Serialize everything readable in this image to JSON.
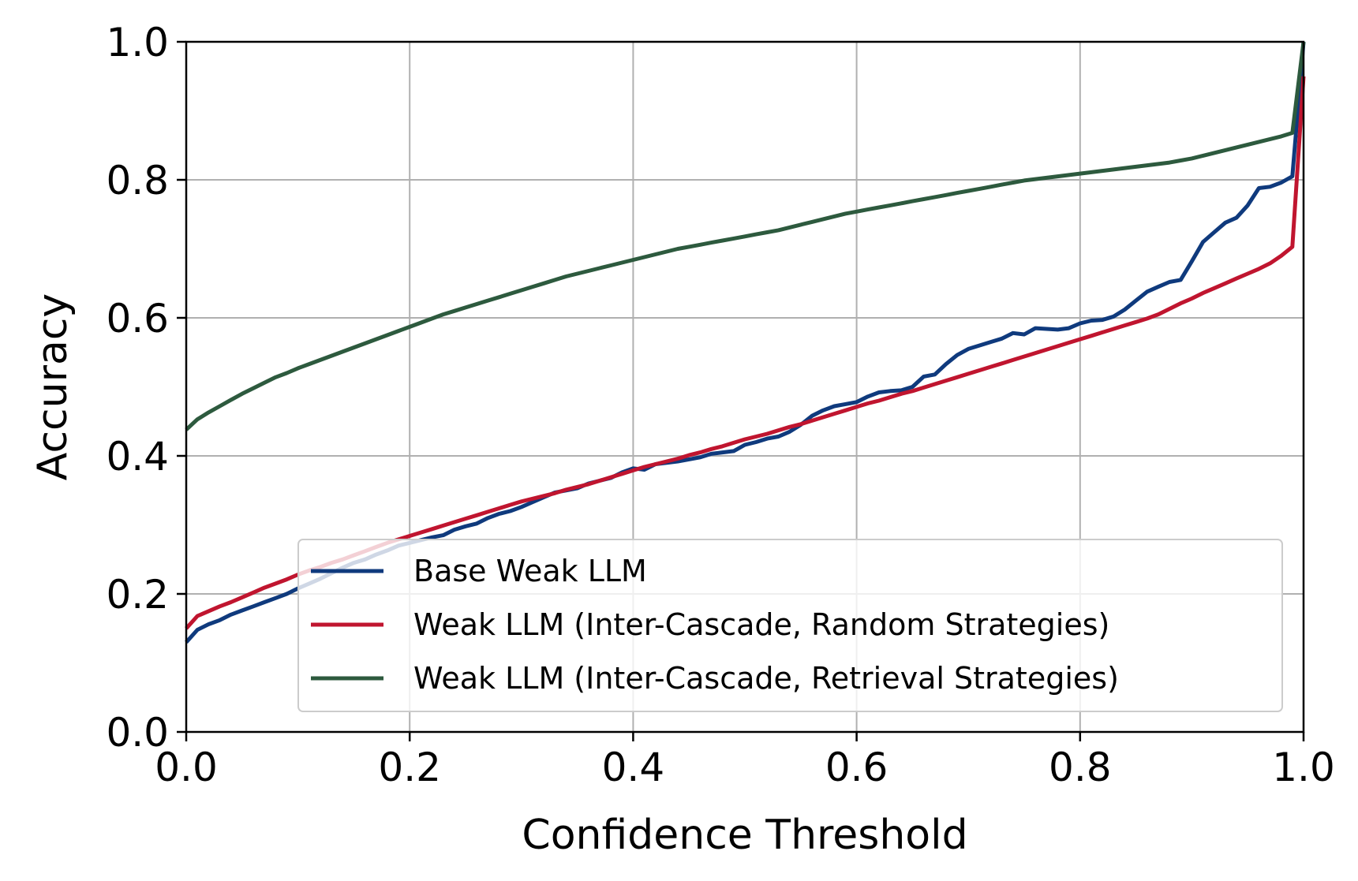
{
  "chart_data": {
    "type": "line",
    "title": "",
    "xlabel": "Confidence Threshold",
    "ylabel": "Accuracy",
    "xlim": [
      0.0,
      1.0
    ],
    "ylim": [
      0.0,
      1.0
    ],
    "xticks": [
      "0.0",
      "0.2",
      "0.4",
      "0.6",
      "0.8",
      "1.0"
    ],
    "yticks": [
      "0.0",
      "0.2",
      "0.4",
      "0.6",
      "0.8",
      "1.0"
    ],
    "grid": true,
    "legend_position": "lower-right",
    "series": [
      {
        "name": "Base Weak LLM",
        "color": "#0f3a7d",
        "points": [
          [
            0.0,
            0.13
          ],
          [
            0.01,
            0.148
          ],
          [
            0.02,
            0.156
          ],
          [
            0.03,
            0.162
          ],
          [
            0.04,
            0.17
          ],
          [
            0.05,
            0.176
          ],
          [
            0.06,
            0.182
          ],
          [
            0.07,
            0.188
          ],
          [
            0.08,
            0.194
          ],
          [
            0.09,
            0.2
          ],
          [
            0.1,
            0.208
          ],
          [
            0.11,
            0.215
          ],
          [
            0.12,
            0.222
          ],
          [
            0.13,
            0.23
          ],
          [
            0.14,
            0.238
          ],
          [
            0.15,
            0.245
          ],
          [
            0.16,
            0.25
          ],
          [
            0.17,
            0.257
          ],
          [
            0.18,
            0.263
          ],
          [
            0.19,
            0.27
          ],
          [
            0.2,
            0.274
          ],
          [
            0.21,
            0.278
          ],
          [
            0.22,
            0.282
          ],
          [
            0.23,
            0.285
          ],
          [
            0.24,
            0.293
          ],
          [
            0.25,
            0.298
          ],
          [
            0.26,
            0.302
          ],
          [
            0.27,
            0.31
          ],
          [
            0.28,
            0.316
          ],
          [
            0.29,
            0.32
          ],
          [
            0.3,
            0.326
          ],
          [
            0.31,
            0.333
          ],
          [
            0.32,
            0.34
          ],
          [
            0.33,
            0.347
          ],
          [
            0.34,
            0.35
          ],
          [
            0.35,
            0.353
          ],
          [
            0.36,
            0.36
          ],
          [
            0.37,
            0.364
          ],
          [
            0.38,
            0.368
          ],
          [
            0.39,
            0.376
          ],
          [
            0.4,
            0.382
          ],
          [
            0.41,
            0.38
          ],
          [
            0.42,
            0.388
          ],
          [
            0.43,
            0.39
          ],
          [
            0.44,
            0.392
          ],
          [
            0.45,
            0.395
          ],
          [
            0.46,
            0.398
          ],
          [
            0.47,
            0.403
          ],
          [
            0.48,
            0.405
          ],
          [
            0.49,
            0.407
          ],
          [
            0.5,
            0.416
          ],
          [
            0.51,
            0.42
          ],
          [
            0.52,
            0.425
          ],
          [
            0.53,
            0.428
          ],
          [
            0.54,
            0.435
          ],
          [
            0.55,
            0.445
          ],
          [
            0.56,
            0.458
          ],
          [
            0.57,
            0.466
          ],
          [
            0.58,
            0.472
          ],
          [
            0.59,
            0.475
          ],
          [
            0.6,
            0.478
          ],
          [
            0.61,
            0.486
          ],
          [
            0.62,
            0.492
          ],
          [
            0.63,
            0.494
          ],
          [
            0.64,
            0.495
          ],
          [
            0.65,
            0.5
          ],
          [
            0.66,
            0.515
          ],
          [
            0.67,
            0.518
          ],
          [
            0.68,
            0.533
          ],
          [
            0.69,
            0.546
          ],
          [
            0.7,
            0.555
          ],
          [
            0.71,
            0.56
          ],
          [
            0.72,
            0.565
          ],
          [
            0.73,
            0.57
          ],
          [
            0.74,
            0.578
          ],
          [
            0.75,
            0.576
          ],
          [
            0.76,
            0.585
          ],
          [
            0.77,
            0.584
          ],
          [
            0.78,
            0.583
          ],
          [
            0.79,
            0.585
          ],
          [
            0.8,
            0.592
          ],
          [
            0.81,
            0.596
          ],
          [
            0.82,
            0.597
          ],
          [
            0.83,
            0.602
          ],
          [
            0.84,
            0.612
          ],
          [
            0.85,
            0.625
          ],
          [
            0.86,
            0.638
          ],
          [
            0.87,
            0.645
          ],
          [
            0.88,
            0.652
          ],
          [
            0.89,
            0.655
          ],
          [
            0.9,
            0.682
          ],
          [
            0.91,
            0.71
          ],
          [
            0.92,
            0.724
          ],
          [
            0.93,
            0.738
          ],
          [
            0.94,
            0.745
          ],
          [
            0.95,
            0.763
          ],
          [
            0.96,
            0.788
          ],
          [
            0.97,
            0.79
          ],
          [
            0.98,
            0.796
          ],
          [
            0.99,
            0.805
          ],
          [
            1.0,
            1.0
          ]
        ]
      },
      {
        "name": "Weak LLM (Inter-Cascade, Random Strategies)",
        "color": "#c0152f",
        "points": [
          [
            0.0,
            0.15
          ],
          [
            0.01,
            0.168
          ],
          [
            0.02,
            0.175
          ],
          [
            0.03,
            0.182
          ],
          [
            0.04,
            0.188
          ],
          [
            0.05,
            0.195
          ],
          [
            0.06,
            0.202
          ],
          [
            0.07,
            0.209
          ],
          [
            0.08,
            0.215
          ],
          [
            0.09,
            0.221
          ],
          [
            0.1,
            0.228
          ],
          [
            0.11,
            0.234
          ],
          [
            0.12,
            0.239
          ],
          [
            0.13,
            0.245
          ],
          [
            0.14,
            0.25
          ],
          [
            0.15,
            0.256
          ],
          [
            0.16,
            0.262
          ],
          [
            0.17,
            0.268
          ],
          [
            0.18,
            0.274
          ],
          [
            0.19,
            0.279
          ],
          [
            0.2,
            0.284
          ],
          [
            0.21,
            0.289
          ],
          [
            0.22,
            0.294
          ],
          [
            0.23,
            0.299
          ],
          [
            0.24,
            0.304
          ],
          [
            0.25,
            0.309
          ],
          [
            0.26,
            0.314
          ],
          [
            0.27,
            0.319
          ],
          [
            0.28,
            0.324
          ],
          [
            0.29,
            0.329
          ],
          [
            0.3,
            0.334
          ],
          [
            0.31,
            0.338
          ],
          [
            0.32,
            0.342
          ],
          [
            0.33,
            0.346
          ],
          [
            0.34,
            0.351
          ],
          [
            0.35,
            0.355
          ],
          [
            0.36,
            0.359
          ],
          [
            0.37,
            0.364
          ],
          [
            0.38,
            0.369
          ],
          [
            0.39,
            0.374
          ],
          [
            0.4,
            0.379
          ],
          [
            0.41,
            0.384
          ],
          [
            0.42,
            0.388
          ],
          [
            0.43,
            0.392
          ],
          [
            0.44,
            0.396
          ],
          [
            0.45,
            0.401
          ],
          [
            0.46,
            0.405
          ],
          [
            0.47,
            0.41
          ],
          [
            0.48,
            0.414
          ],
          [
            0.49,
            0.419
          ],
          [
            0.5,
            0.424
          ],
          [
            0.51,
            0.428
          ],
          [
            0.52,
            0.432
          ],
          [
            0.53,
            0.437
          ],
          [
            0.54,
            0.442
          ],
          [
            0.55,
            0.446
          ],
          [
            0.56,
            0.451
          ],
          [
            0.57,
            0.456
          ],
          [
            0.58,
            0.461
          ],
          [
            0.59,
            0.466
          ],
          [
            0.6,
            0.471
          ],
          [
            0.61,
            0.476
          ],
          [
            0.62,
            0.48
          ],
          [
            0.63,
            0.485
          ],
          [
            0.64,
            0.49
          ],
          [
            0.65,
            0.494
          ],
          [
            0.66,
            0.499
          ],
          [
            0.67,
            0.504
          ],
          [
            0.68,
            0.509
          ],
          [
            0.69,
            0.514
          ],
          [
            0.7,
            0.519
          ],
          [
            0.71,
            0.524
          ],
          [
            0.72,
            0.529
          ],
          [
            0.73,
            0.534
          ],
          [
            0.74,
            0.539
          ],
          [
            0.75,
            0.544
          ],
          [
            0.76,
            0.549
          ],
          [
            0.77,
            0.554
          ],
          [
            0.78,
            0.559
          ],
          [
            0.79,
            0.564
          ],
          [
            0.8,
            0.569
          ],
          [
            0.81,
            0.574
          ],
          [
            0.82,
            0.579
          ],
          [
            0.83,
            0.584
          ],
          [
            0.84,
            0.589
          ],
          [
            0.85,
            0.594
          ],
          [
            0.86,
            0.599
          ],
          [
            0.87,
            0.605
          ],
          [
            0.88,
            0.613
          ],
          [
            0.89,
            0.621
          ],
          [
            0.9,
            0.628
          ],
          [
            0.91,
            0.636
          ],
          [
            0.92,
            0.643
          ],
          [
            0.93,
            0.65
          ],
          [
            0.94,
            0.657
          ],
          [
            0.95,
            0.664
          ],
          [
            0.96,
            0.671
          ],
          [
            0.97,
            0.679
          ],
          [
            0.98,
            0.69
          ],
          [
            0.99,
            0.703
          ],
          [
            1.0,
            0.95
          ]
        ]
      },
      {
        "name": "Weak LLM (Inter-Cascade, Retrieval Strategies)",
        "color": "#2d5a3e",
        "points": [
          [
            0.0,
            0.438
          ],
          [
            0.01,
            0.453
          ],
          [
            0.02,
            0.463
          ],
          [
            0.03,
            0.472
          ],
          [
            0.04,
            0.481
          ],
          [
            0.05,
            0.49
          ],
          [
            0.06,
            0.498
          ],
          [
            0.07,
            0.506
          ],
          [
            0.08,
            0.514
          ],
          [
            0.09,
            0.52
          ],
          [
            0.1,
            0.527
          ],
          [
            0.11,
            0.533
          ],
          [
            0.12,
            0.539
          ],
          [
            0.13,
            0.545
          ],
          [
            0.14,
            0.551
          ],
          [
            0.15,
            0.557
          ],
          [
            0.16,
            0.563
          ],
          [
            0.17,
            0.569
          ],
          [
            0.18,
            0.575
          ],
          [
            0.19,
            0.581
          ],
          [
            0.2,
            0.587
          ],
          [
            0.21,
            0.593
          ],
          [
            0.22,
            0.599
          ],
          [
            0.23,
            0.605
          ],
          [
            0.24,
            0.61
          ],
          [
            0.25,
            0.615
          ],
          [
            0.26,
            0.62
          ],
          [
            0.27,
            0.625
          ],
          [
            0.28,
            0.63
          ],
          [
            0.29,
            0.635
          ],
          [
            0.3,
            0.64
          ],
          [
            0.31,
            0.645
          ],
          [
            0.32,
            0.65
          ],
          [
            0.33,
            0.655
          ],
          [
            0.34,
            0.66
          ],
          [
            0.35,
            0.664
          ],
          [
            0.36,
            0.668
          ],
          [
            0.37,
            0.672
          ],
          [
            0.38,
            0.676
          ],
          [
            0.39,
            0.68
          ],
          [
            0.4,
            0.684
          ],
          [
            0.41,
            0.688
          ],
          [
            0.42,
            0.692
          ],
          [
            0.43,
            0.696
          ],
          [
            0.44,
            0.7
          ],
          [
            0.45,
            0.703
          ],
          [
            0.46,
            0.706
          ],
          [
            0.47,
            0.709
          ],
          [
            0.48,
            0.712
          ],
          [
            0.49,
            0.715
          ],
          [
            0.5,
            0.718
          ],
          [
            0.51,
            0.721
          ],
          [
            0.52,
            0.724
          ],
          [
            0.53,
            0.727
          ],
          [
            0.54,
            0.731
          ],
          [
            0.55,
            0.735
          ],
          [
            0.56,
            0.739
          ],
          [
            0.57,
            0.743
          ],
          [
            0.58,
            0.747
          ],
          [
            0.59,
            0.751
          ],
          [
            0.6,
            0.754
          ],
          [
            0.61,
            0.757
          ],
          [
            0.62,
            0.76
          ],
          [
            0.63,
            0.763
          ],
          [
            0.64,
            0.766
          ],
          [
            0.65,
            0.769
          ],
          [
            0.66,
            0.772
          ],
          [
            0.67,
            0.775
          ],
          [
            0.68,
            0.778
          ],
          [
            0.69,
            0.781
          ],
          [
            0.7,
            0.784
          ],
          [
            0.71,
            0.787
          ],
          [
            0.72,
            0.79
          ],
          [
            0.73,
            0.793
          ],
          [
            0.74,
            0.796
          ],
          [
            0.75,
            0.799
          ],
          [
            0.76,
            0.801
          ],
          [
            0.77,
            0.803
          ],
          [
            0.78,
            0.805
          ],
          [
            0.79,
            0.807
          ],
          [
            0.8,
            0.809
          ],
          [
            0.81,
            0.811
          ],
          [
            0.82,
            0.813
          ],
          [
            0.83,
            0.815
          ],
          [
            0.84,
            0.817
          ],
          [
            0.85,
            0.819
          ],
          [
            0.86,
            0.821
          ],
          [
            0.87,
            0.823
          ],
          [
            0.88,
            0.825
          ],
          [
            0.89,
            0.828
          ],
          [
            0.9,
            0.831
          ],
          [
            0.91,
            0.835
          ],
          [
            0.92,
            0.839
          ],
          [
            0.93,
            0.843
          ],
          [
            0.94,
            0.847
          ],
          [
            0.95,
            0.851
          ],
          [
            0.96,
            0.855
          ],
          [
            0.97,
            0.859
          ],
          [
            0.98,
            0.863
          ],
          [
            0.99,
            0.868
          ],
          [
            1.0,
            1.0
          ]
        ]
      }
    ]
  }
}
